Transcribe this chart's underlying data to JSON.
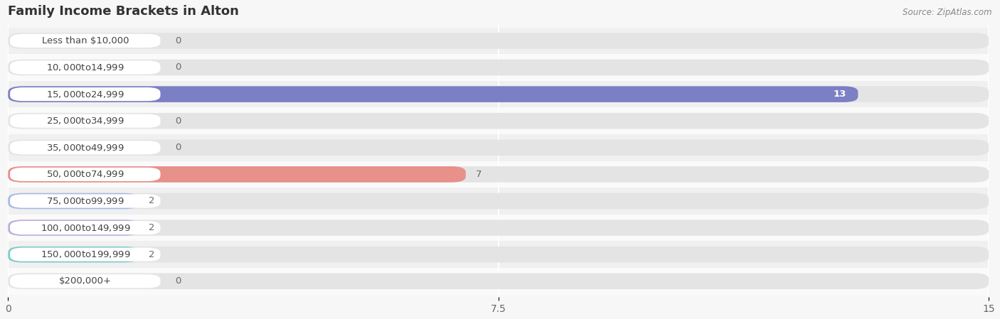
{
  "title": "Family Income Brackets in Alton",
  "source": "Source: ZipAtlas.com",
  "categories": [
    "Less than $10,000",
    "$10,000 to $14,999",
    "$15,000 to $24,999",
    "$25,000 to $34,999",
    "$35,000 to $49,999",
    "$50,000 to $74,999",
    "$75,000 to $99,999",
    "$100,000 to $149,999",
    "$150,000 to $199,999",
    "$200,000+"
  ],
  "values": [
    0,
    0,
    13,
    0,
    0,
    7,
    2,
    2,
    2,
    0
  ],
  "bar_colors": [
    "#c9b8d8",
    "#7ecec4",
    "#7b7fc4",
    "#f4a0b0",
    "#f5c98a",
    "#e8908a",
    "#a8bce8",
    "#c0b0d8",
    "#7ecec8",
    "#b0b8e8"
  ],
  "xlim": [
    0,
    15
  ],
  "xticks": [
    0,
    7.5,
    15
  ],
  "background_color": "#f7f7f7",
  "bar_bg_color": "#e4e4e4",
  "row_bg_colors": [
    "#f0f0f0",
    "#fafafa"
  ],
  "title_fontsize": 13,
  "tick_fontsize": 10,
  "label_fontsize": 9.5,
  "value_fontsize": 9.5
}
